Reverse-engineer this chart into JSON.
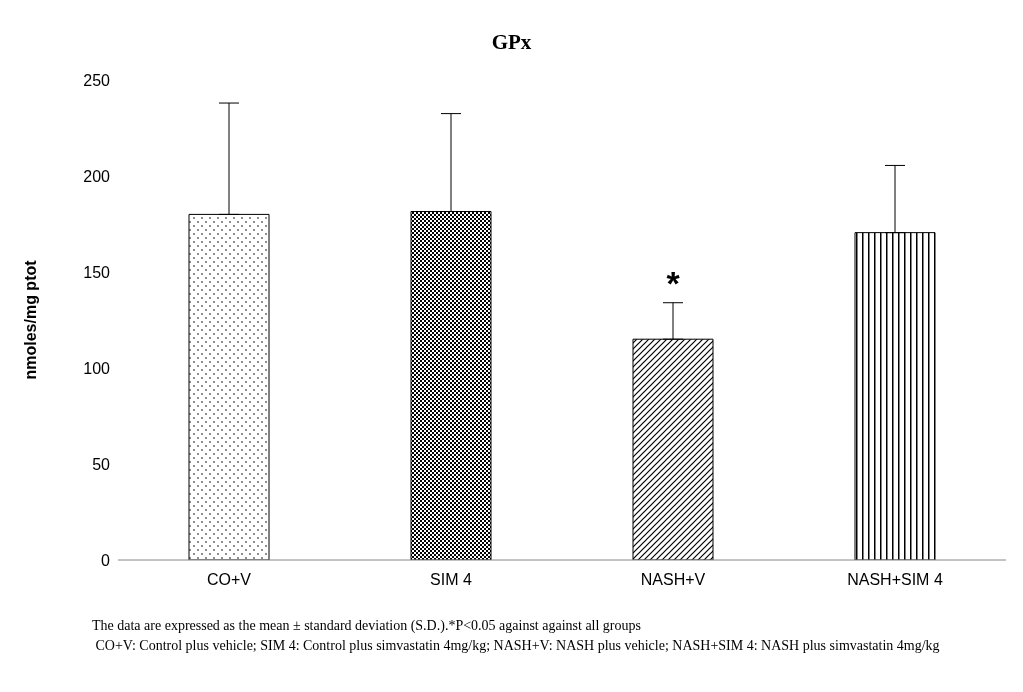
{
  "chart_data": {
    "type": "bar",
    "title": "GPx",
    "ylabel": "nmoles/mg ptot",
    "categories": [
      "CO+V",
      "SIM 4",
      "NASH+V",
      "NASH+SIM 4"
    ],
    "values": [
      180,
      181.5,
      115,
      170.5
    ],
    "errors": [
      [
        180,
        238
      ],
      [
        181.5,
        232.5
      ],
      [
        115,
        134
      ],
      [
        170.5,
        205.5
      ]
    ],
    "colors": [
      "#000000",
      "#000000",
      "#000000",
      "#000000"
    ],
    "ylim": [
      0,
      250
    ],
    "yticks": [
      0,
      50,
      100,
      150,
      200,
      250
    ],
    "grid": false,
    "legend": false,
    "annotations": [
      {
        "text": "*",
        "x": "NASH+V",
        "y": 134
      },
      "The data are expressed as the mean ± standard deviation (S.D.).*P<0.05 against against all groups",
      " CO+V: Control plus vehicle; SIM 4: Control plus simvastatin 4mg/kg; NASH+V: NASH plus vehicle; NASH+SIM 4: NASH plus simvastatin 4mg/kg"
    ]
  }
}
